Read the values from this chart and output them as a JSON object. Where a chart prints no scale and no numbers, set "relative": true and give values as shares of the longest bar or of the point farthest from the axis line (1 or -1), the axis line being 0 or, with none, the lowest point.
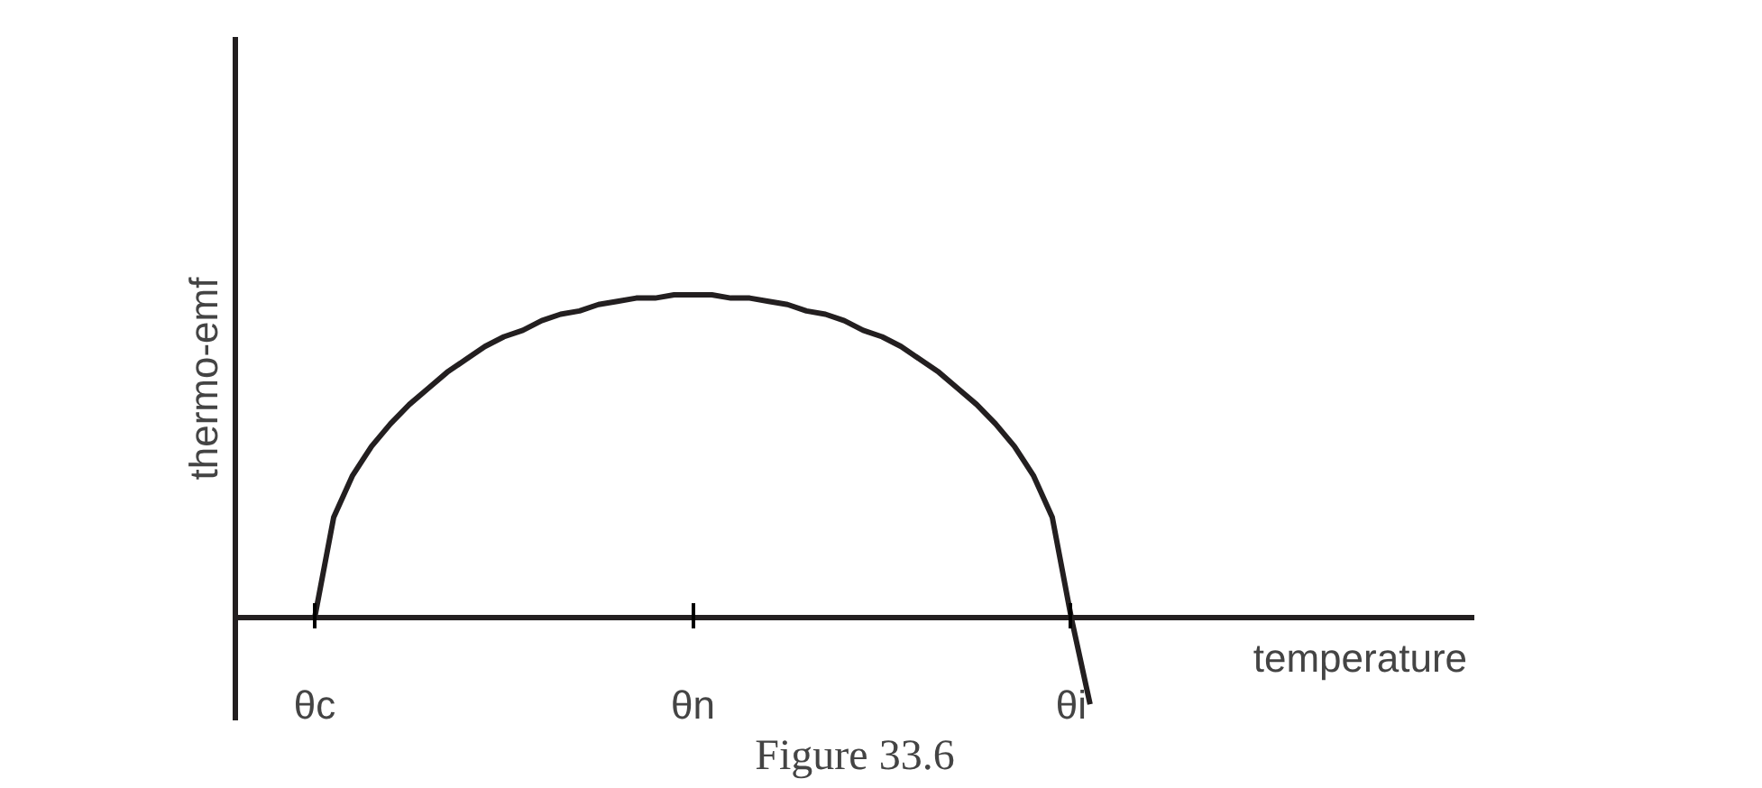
{
  "chart_data": {
    "type": "line",
    "relative": true,
    "xlabel": "temperature",
    "ylabel": "thermo-emf",
    "annotations": [
      "Figure 33.6"
    ],
    "categories": [
      "θc",
      null,
      null,
      null,
      null,
      null,
      null,
      null,
      null,
      null,
      null,
      null,
      null,
      null,
      null,
      null,
      null,
      null,
      null,
      null,
      "θn",
      null,
      null,
      null,
      null,
      null,
      null,
      null,
      null,
      null,
      null,
      null,
      null,
      null,
      null,
      null,
      null,
      null,
      null,
      null,
      "θi",
      null
    ],
    "series": [
      {
        "color": "#231f20",
        "values": [
          0,
          0.31,
          0.44,
          0.53,
          0.6,
          0.66,
          0.71,
          0.76,
          0.8,
          0.84,
          0.87,
          0.89,
          0.92,
          0.94,
          0.95,
          0.97,
          0.98,
          0.99,
          0.99,
          1.0,
          1,
          1.0,
          0.99,
          0.99,
          0.98,
          0.97,
          0.95,
          0.94,
          0.92,
          0.89,
          0.87,
          0.84,
          0.8,
          0.76,
          0.71,
          0.66,
          0.6,
          0.53,
          0.44,
          0.31,
          0,
          -0.27
        ]
      }
    ],
    "grid": false,
    "marker": "none",
    "line_style": "solid"
  }
}
